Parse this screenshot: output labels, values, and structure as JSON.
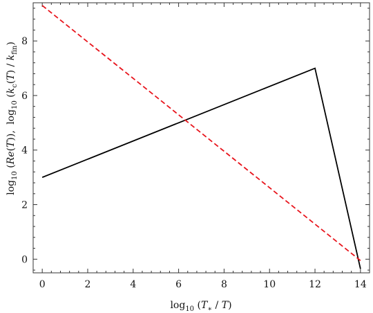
{
  "chart_data": {
    "type": "line",
    "xlabel_parts": [
      "log",
      "10",
      " (",
      "T",
      "∗",
      " / ",
      "T",
      ")"
    ],
    "ylabel_line1_parts": [
      "log",
      "10",
      " (",
      "Re",
      "(",
      "T",
      ")),"
    ],
    "ylabel_line2_parts": [
      "log",
      "10",
      " (",
      "k",
      "c",
      "(",
      "T",
      ") / ",
      "k",
      "fin",
      ")"
    ],
    "xlim": [
      -0.4,
      14.4
    ],
    "ylim": [
      -0.5,
      9.4
    ],
    "x_ticks": [
      0,
      2,
      4,
      6,
      8,
      10,
      12,
      14
    ],
    "x_tick_labels": [
      "0",
      "2",
      "4",
      "6",
      "8",
      "10",
      "12",
      "14"
    ],
    "y_ticks": [
      0,
      2,
      4,
      6,
      8
    ],
    "y_tick_labels": [
      "0",
      "2",
      "4",
      "6",
      "8"
    ],
    "grid": false,
    "series": [
      {
        "color": "#000000",
        "dash": "solid",
        "x": [
          0,
          12,
          14
        ],
        "y": [
          3.0,
          7.0,
          -0.35
        ]
      },
      {
        "color": "#e8141c",
        "dash": "dashed",
        "x": [
          0,
          14
        ],
        "y": [
          9.3,
          -0.05
        ]
      }
    ]
  }
}
